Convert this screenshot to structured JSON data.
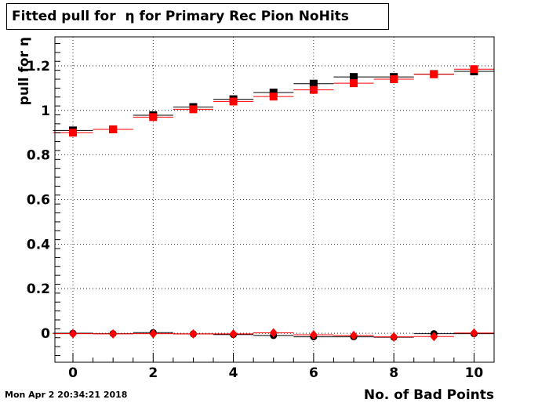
{
  "title": "Fitted pull for  η for Primary Rec Pion NoHits",
  "timestamp": "Mon Apr  2 20:34:21 2018",
  "chart_data": {
    "type": "scatter",
    "title": "Fitted pull for  η for Primary Rec Pion NoHits",
    "xlabel": "No. of Bad Points",
    "ylabel": "pull for  η",
    "xlim": [
      -0.45,
      10.5
    ],
    "ylim": [
      -0.13,
      1.33
    ],
    "grid": true,
    "x_ticks": [
      0,
      2,
      4,
      6,
      8,
      10
    ],
    "y_ticks": [
      0,
      0.2,
      0.4,
      0.6,
      0.8,
      1,
      1.2
    ],
    "x_tick_labels": [
      "0",
      "2",
      "4",
      "6",
      "8",
      "10"
    ],
    "y_tick_labels": [
      "0",
      "0.2",
      "0.4",
      "0.6",
      "0.8",
      "1",
      "1.2"
    ],
    "x": [
      0,
      1,
      2,
      3,
      4,
      5,
      6,
      7,
      8,
      9,
      10
    ],
    "series": [
      {
        "marker": "square",
        "color": "#000000",
        "values": [
          0.91,
          0.915,
          0.978,
          1.015,
          1.05,
          1.08,
          1.12,
          1.15,
          1.15,
          1.163,
          1.175
        ]
      },
      {
        "marker": "square",
        "color": "#ff0000",
        "values": [
          0.9,
          0.915,
          0.97,
          1.005,
          1.04,
          1.062,
          1.092,
          1.122,
          1.14,
          1.162,
          1.185
        ]
      },
      {
        "marker": "circle",
        "color": "#000000",
        "values": [
          0.0,
          -0.002,
          0.003,
          -0.003,
          -0.006,
          -0.01,
          -0.016,
          -0.016,
          -0.018,
          -0.002,
          -0.002
        ]
      },
      {
        "marker": "diamond",
        "color": "#ff0000",
        "values": [
          -0.002,
          -0.003,
          -0.002,
          -0.003,
          -0.003,
          0.002,
          -0.007,
          -0.01,
          -0.016,
          -0.015,
          0.001
        ]
      }
    ]
  }
}
